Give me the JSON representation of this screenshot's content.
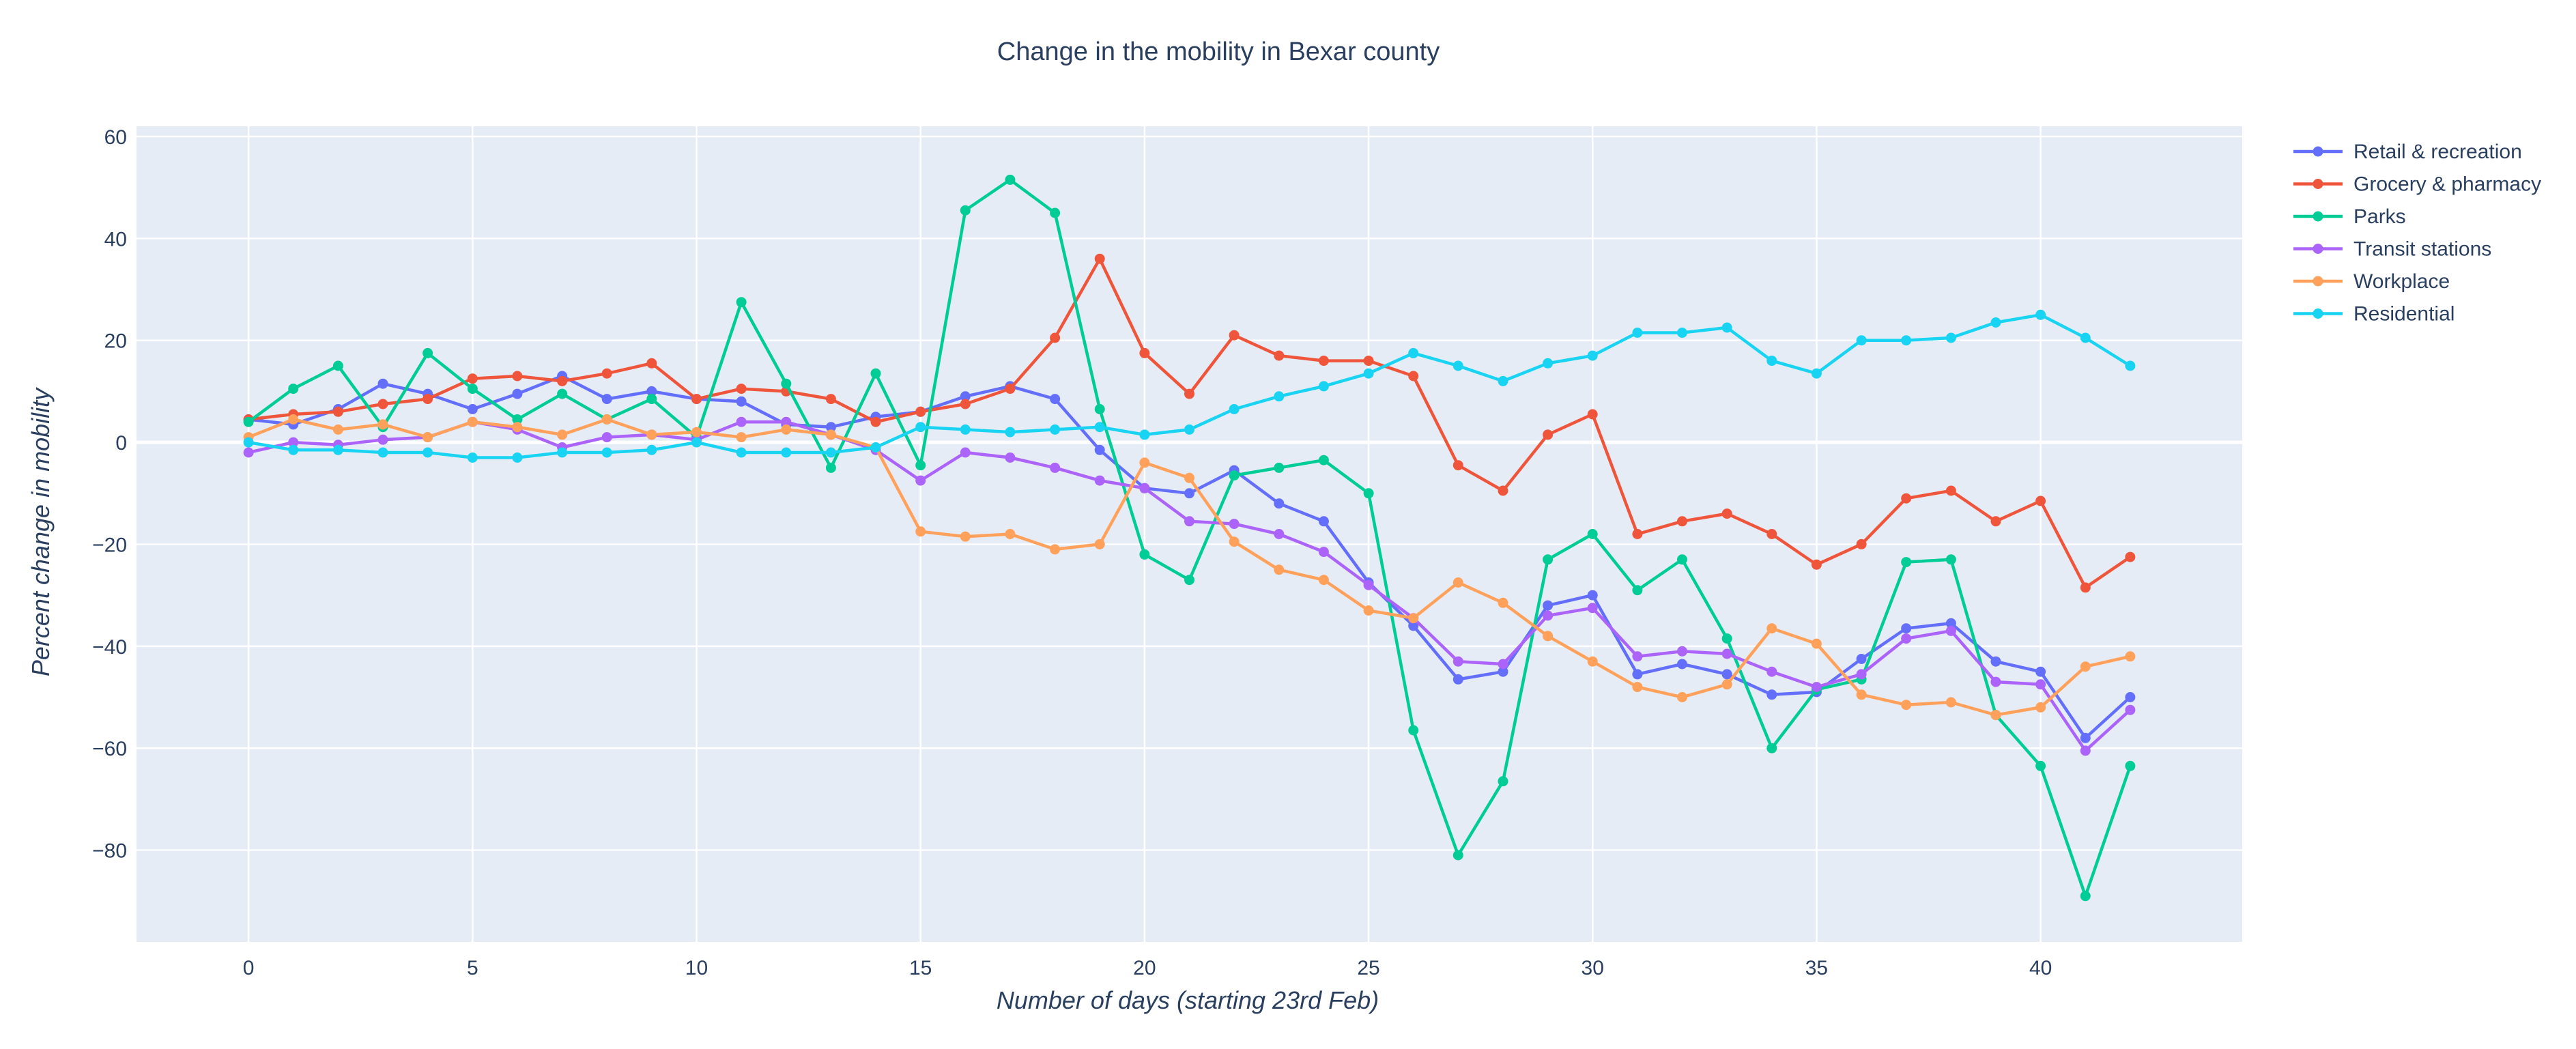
{
  "chart_data": {
    "type": "line",
    "title": "Change in the mobility in Bexar county",
    "xlabel": "Number of days (starting 23rd Feb)",
    "ylabel": "Percent change in mobility",
    "xlim": [
      -2.5,
      44.5
    ],
    "ylim": [
      -98,
      62
    ],
    "xticks": [
      0,
      5,
      10,
      15,
      20,
      25,
      30,
      35,
      40
    ],
    "yticks": [
      60,
      40,
      20,
      0,
      -20,
      -40,
      -60,
      -80
    ],
    "grid": true,
    "legend_position": "top-right",
    "x": [
      0,
      1,
      2,
      3,
      4,
      5,
      6,
      7,
      8,
      9,
      10,
      11,
      12,
      13,
      14,
      15,
      16,
      17,
      18,
      19,
      20,
      21,
      22,
      23,
      24,
      25,
      26,
      27,
      28,
      29,
      30,
      31,
      32,
      33,
      34,
      35,
      36,
      37,
      38,
      39,
      40,
      41,
      42
    ],
    "series": [
      {
        "name": "Retail & recreation",
        "color": "#636efa",
        "values": [
          4.5,
          3.5,
          6.5,
          11.5,
          9.5,
          6.5,
          9.5,
          13,
          8.5,
          10,
          8.5,
          8,
          3.5,
          3,
          5,
          6,
          9,
          11,
          8.5,
          -1.5,
          -9,
          -10,
          -5.5,
          -12,
          -15.5,
          -27.5,
          -36,
          -46.5,
          -45,
          -32,
          -30,
          -45.5,
          -43.5,
          -45.5,
          -49.5,
          -49,
          -42.5,
          -36.5,
          -35.5,
          -43,
          -45,
          -58,
          -50
        ]
      },
      {
        "name": "Grocery & pharmacy",
        "color": "#ef553b",
        "values": [
          4.5,
          5.5,
          6,
          7.5,
          8.5,
          12.5,
          13,
          12,
          13.5,
          15.5,
          8.5,
          10.5,
          10,
          8.5,
          4,
          6,
          7.5,
          10.5,
          20.5,
          36,
          17.5,
          9.5,
          21,
          17,
          16,
          16,
          13,
          -4.5,
          -9.5,
          1.5,
          5.5,
          -18,
          -15.5,
          -14,
          -18,
          -24,
          -20,
          -11,
          -9.5,
          -15.5,
          -11.5,
          -28.5,
          -22.5
        ]
      },
      {
        "name": "Parks",
        "color": "#00cc96",
        "values": [
          4,
          10.5,
          15,
          3,
          17.5,
          10.5,
          4.5,
          9.5,
          4.5,
          8.5,
          1,
          27.5,
          11.5,
          -5,
          13.5,
          -4.5,
          45.5,
          51.5,
          45,
          6.5,
          -22,
          -27,
          -6.5,
          -5,
          -3.5,
          -10,
          -56.5,
          -81,
          -66.5,
          -23,
          -18,
          -29,
          -23,
          -38.5,
          -60,
          -48.5,
          -46.5,
          -23.5,
          -23,
          -53.5,
          -63.5,
          -89,
          -63.5
        ]
      },
      {
        "name": "Transit stations",
        "color": "#ab63fa",
        "values": [
          -2,
          0,
          -0.5,
          0.5,
          1,
          4,
          2.5,
          -1,
          1,
          1.5,
          0.5,
          4,
          4,
          1.5,
          -1.5,
          -7.5,
          -2,
          -3,
          -5,
          -7.5,
          -9,
          -15.5,
          -16,
          -18,
          -21.5,
          -28,
          -34.5,
          -43,
          -43.5,
          -34,
          -32.5,
          -42,
          -41,
          -41.5,
          -45,
          -48,
          -45.5,
          -38.5,
          -37,
          -47,
          -47.5,
          -60.5,
          -52.5
        ]
      },
      {
        "name": "Workplace",
        "color": "#ffa15a",
        "values": [
          1,
          4.5,
          2.5,
          3.5,
          1,
          4,
          3,
          1.5,
          4.5,
          1.5,
          2,
          1,
          2.5,
          1.5,
          -1,
          -17.5,
          -18.5,
          -18,
          -21,
          -20,
          -4,
          -7,
          -19.5,
          -25,
          -27,
          -33,
          -34.5,
          -27.5,
          -31.5,
          -38,
          -43,
          -48,
          -50,
          -47.5,
          -36.5,
          -39.5,
          -49.5,
          -51.5,
          -51,
          -53.5,
          -52,
          -44,
          -42
        ]
      },
      {
        "name": "Residential",
        "color": "#19d3f3",
        "values": [
          0,
          -1.5,
          -1.5,
          -2,
          -2,
          -3,
          -3,
          -2,
          -2,
          -1.5,
          0,
          -2,
          -2,
          -2,
          -1,
          3,
          2.5,
          2,
          2.5,
          3,
          1.5,
          2.5,
          6.5,
          9,
          11,
          13.5,
          17.5,
          15,
          12,
          15.5,
          17,
          21.5,
          21.5,
          22.5,
          16,
          13.5,
          20,
          20,
          20.5,
          23.5,
          25,
          20.5,
          15
        ]
      }
    ]
  }
}
